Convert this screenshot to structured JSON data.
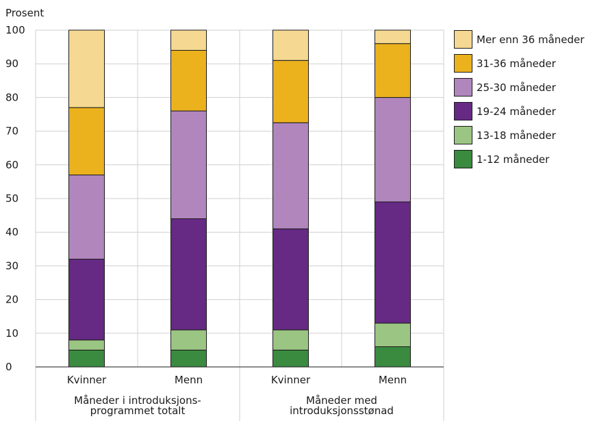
{
  "chart_data": {
    "type": "bar",
    "stacked": true,
    "ylabel": "Prosent",
    "ylim": [
      0,
      100
    ],
    "yticks": [
      0,
      10,
      20,
      30,
      40,
      50,
      60,
      70,
      80,
      90,
      100
    ],
    "grid": true,
    "legend_position": "right",
    "categories": [
      "Kvinner",
      "Menn",
      "Kvinner",
      "Menn"
    ],
    "groups": [
      {
        "label": "Måneder i introduksjons-\nprogrammet totalt",
        "span": [
          0,
          1
        ]
      },
      {
        "label": "Måneder med\nintroduksjonsstønad",
        "span": [
          2,
          3
        ]
      }
    ],
    "series": [
      {
        "name": "1-12 måneder",
        "color": "#3a8a40",
        "values": [
          5,
          5,
          5,
          6
        ]
      },
      {
        "name": "13-18 måneder",
        "color": "#9bc583",
        "values": [
          3,
          6,
          6,
          7
        ]
      },
      {
        "name": "19-24 måneder",
        "color": "#662a85",
        "values": [
          24,
          33,
          30,
          36
        ]
      },
      {
        "name": "25-30 måneder",
        "color": "#b186bd",
        "values": [
          25,
          32,
          31.5,
          31
        ]
      },
      {
        "name": "31-36 måneder",
        "color": "#ebb21e",
        "values": [
          20,
          18,
          18.5,
          16
        ]
      },
      {
        "name": "Mer enn 36 måneder",
        "color": "#f5d891",
        "values": [
          23,
          6,
          9,
          4
        ]
      }
    ]
  }
}
